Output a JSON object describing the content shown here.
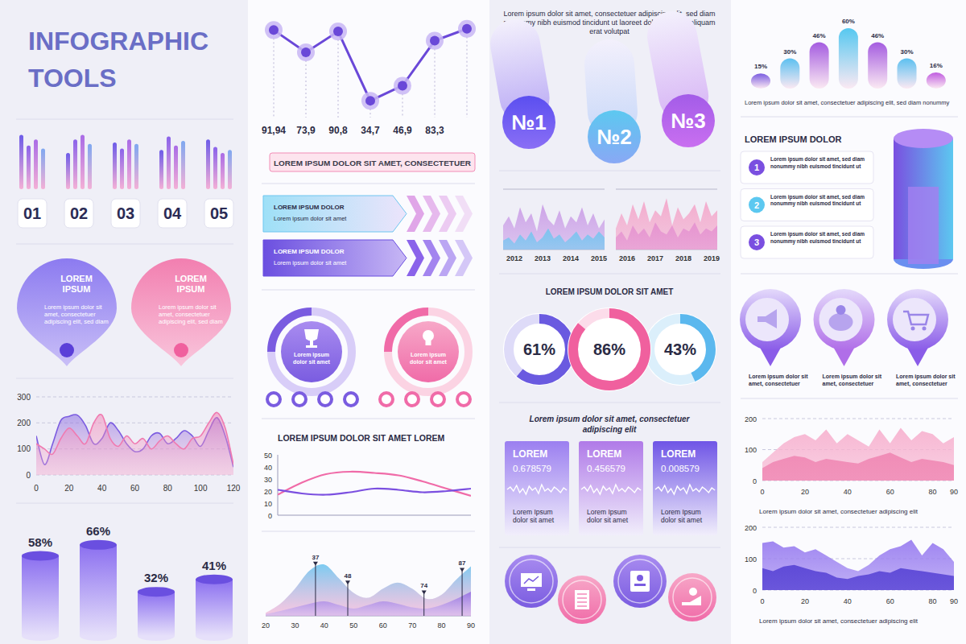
{
  "header": {
    "title": "INFOGRAPHIC TOOLS"
  },
  "chart_data": [
    {
      "type": "bar",
      "categories": [
        "01",
        "02",
        "03",
        "04",
        "05"
      ],
      "series": [
        {
          "color": "#6d5ce8",
          "values": [
            72,
            48,
            62,
            52,
            66
          ]
        },
        {
          "color": "#8a63ea",
          "values": [
            58,
            66,
            54,
            70,
            56
          ]
        },
        {
          "color": "#a96be6",
          "values": [
            66,
            72,
            66,
            58,
            48
          ]
        },
        {
          "color": "#7fa8f0",
          "values": [
            54,
            60,
            60,
            64,
            52
          ]
        }
      ],
      "ylim": [
        0,
        80
      ],
      "tick_labels": "x"
    },
    {
      "type": "area",
      "x": [
        0,
        5,
        10,
        15,
        20,
        25,
        30,
        35,
        40,
        45,
        50,
        55,
        60,
        65,
        70,
        75,
        80,
        85,
        90,
        95,
        100,
        105,
        110,
        115,
        120
      ],
      "series": [
        {
          "color": "#7b5ce0",
          "values": [
            150,
            40,
            120,
            210,
            225,
            230,
            190,
            120,
            140,
            200,
            170,
            120,
            90,
            100,
            150,
            160,
            120,
            140,
            170,
            150,
            110,
            170,
            220,
            150,
            30
          ]
        },
        {
          "color": "#f07ab0",
          "values": [
            120,
            100,
            80,
            140,
            180,
            150,
            120,
            200,
            230,
            140,
            110,
            150,
            120,
            140,
            100,
            130,
            150,
            120,
            100,
            140,
            150,
            200,
            240,
            180,
            40
          ]
        }
      ],
      "xlim": [
        0,
        120
      ],
      "xticks": [
        0,
        20,
        40,
        60,
        80,
        100,
        120
      ],
      "ylim": [
        0,
        300
      ],
      "yticks": [
        0,
        100,
        200,
        300
      ],
      "grid": true
    },
    {
      "type": "bar",
      "values": [
        58,
        66,
        32,
        41
      ],
      "value_labels": [
        "58%",
        "66%",
        "32%",
        "41%"
      ],
      "data_labels": true,
      "color": "#8b6ff0",
      "ylim": [
        0,
        70
      ],
      "tick_labels": false
    },
    {
      "type": "line",
      "title": "LOREM IPSUM DOLOR SIT AMET, CONSECTETUER",
      "values": [
        91.94,
        73.9,
        90.8,
        34.7,
        46.9,
        83.3,
        93
      ],
      "value_labels": [
        "91,94",
        "73,9",
        "90,8",
        "34,7",
        "46,9",
        "83,3",
        null
      ],
      "data_labels": true,
      "color": "#6a48d8",
      "marker": "circle",
      "ylim": [
        25,
        100
      ],
      "tick_labels": false
    },
    {
      "type": "line",
      "title": "LOREM IPSUM DOLOR SIT AMET LOREM",
      "categories": [
        null,
        null,
        null,
        null,
        null,
        null,
        null,
        null,
        null
      ],
      "series": [
        {
          "color": "#f06ba8",
          "values": [
            17,
            27,
            34,
            36,
            35,
            33,
            28,
            22,
            16
          ]
        },
        {
          "color": "#7b4fe0",
          "values": [
            21,
            18,
            17,
            19,
            22,
            21,
            19,
            20,
            22
          ]
        }
      ],
      "ylim": [
        0,
        50
      ],
      "yticks": [
        0,
        10,
        20,
        30,
        40,
        50
      ],
      "tick_labels": "y"
    },
    {
      "type": "area",
      "x": [
        20,
        25,
        30,
        35,
        40,
        45,
        50,
        55,
        60,
        65,
        70,
        75,
        80,
        85,
        90
      ],
      "series": [
        {
          "color": "#6ec6f0",
          "values": [
            5,
            20,
            45,
            75,
            85,
            62,
            38,
            30,
            45,
            55,
            45,
            28,
            35,
            60,
            82
          ]
        },
        {
          "color": "#8a5ce0",
          "values": [
            3,
            8,
            14,
            20,
            24,
            18,
            12,
            18,
            24,
            20,
            14,
            12,
            18,
            28,
            40
          ]
        }
      ],
      "xlim": [
        20,
        90
      ],
      "xticks": [
        20,
        30,
        40,
        50,
        60,
        70,
        80,
        90
      ],
      "ylim": [
        0,
        100
      ],
      "tick_labels": "x",
      "annotations": [
        37,
        48,
        74,
        87
      ]
    },
    {
      "type": "area",
      "categories": [
        null,
        null,
        "2012",
        null,
        null,
        null,
        null,
        "2013",
        null,
        null,
        null,
        null,
        "2014",
        null,
        null,
        null,
        null,
        "2015",
        null
      ],
      "series": [
        {
          "color": "#c99be6",
          "values": [
            40,
            55,
            35,
            70,
            45,
            60,
            30,
            75,
            50,
            40,
            65,
            35,
            55,
            45,
            70,
            40,
            60,
            35,
            50
          ]
        },
        {
          "color": "#6ec6f0",
          "values": [
            15,
            20,
            10,
            25,
            15,
            30,
            12,
            20,
            35,
            18,
            25,
            12,
            20,
            30,
            15,
            25,
            18,
            30,
            20
          ]
        }
      ],
      "ylim": [
        0,
        100
      ],
      "yticks": [
        0,
        100
      ],
      "grid": true,
      "tick_labels": "x"
    },
    {
      "type": "area",
      "categories": [
        null,
        null,
        "2016",
        null,
        null,
        null,
        null,
        "2017",
        null,
        null,
        null,
        null,
        "2018",
        null,
        null,
        null,
        null,
        "2019",
        null
      ],
      "series": [
        {
          "color": "#f4a3c8",
          "values": [
            35,
            60,
            40,
            75,
            50,
            80,
            45,
            65,
            55,
            85,
            40,
            70,
            50,
            60,
            75,
            45,
            80,
            55,
            65
          ]
        },
        {
          "color": "#e48fd0",
          "values": [
            20,
            30,
            15,
            40,
            25,
            35,
            20,
            45,
            30,
            25,
            40,
            20,
            35,
            30,
            45,
            25,
            35,
            30,
            40
          ]
        }
      ],
      "ylim": [
        0,
        100
      ],
      "yticks": [
        0,
        100
      ],
      "grid": true,
      "tick_labels": "x"
    },
    {
      "type": "donut",
      "title": "LOREM IPSUM DOLOR SIT AMET",
      "values": [
        61,
        86,
        43
      ],
      "value_labels": [
        "61%",
        "86%",
        "43%"
      ],
      "data_labels": true,
      "colors": [
        "#6a5ae0",
        "#f0609e",
        "#5bb8ee"
      ],
      "ylim": [
        0,
        100
      ]
    },
    {
      "type": "bar",
      "subtitle": "Lorem ipsum dolor sit amet, consectetuer adipiscing elit, sed diam nonummy",
      "values": [
        15,
        30,
        46,
        60,
        46,
        30,
        16
      ],
      "value_labels": [
        "15%",
        "30%",
        "46%",
        "60%",
        "46%",
        "30%",
        "16%"
      ],
      "data_labels": true,
      "colors": [
        "#7a5ce0",
        "#5cc0f0",
        "#a45ce0",
        "#56c8f0",
        "#a45ce0",
        "#5cc0f0",
        "#c05ce0"
      ],
      "ylim": [
        0,
        60
      ],
      "tick_labels": false
    },
    {
      "type": "area",
      "subtitle": "Lorem ipsum dolor sit amet, consectetuer adipiscing elit",
      "x": [
        0,
        5,
        10,
        15,
        20,
        25,
        30,
        35,
        40,
        45,
        50,
        55,
        60,
        65,
        70,
        75,
        80,
        85,
        90
      ],
      "series": [
        {
          "color": "#f7b3d0",
          "values": [
            60,
            90,
            120,
            140,
            150,
            130,
            165,
            120,
            150,
            130,
            110,
            165,
            120,
            170,
            130,
            160,
            150,
            120,
            140
          ]
        },
        {
          "color": "#f08ab5",
          "values": [
            40,
            60,
            70,
            80,
            75,
            60,
            70,
            65,
            60,
            55,
            70,
            80,
            90,
            75,
            60,
            70,
            65,
            60,
            50
          ]
        }
      ],
      "xlim": [
        0,
        90
      ],
      "xticks": [
        0,
        20,
        40,
        60,
        80,
        90
      ],
      "ylim": [
        0,
        200
      ],
      "yticks": [
        0,
        100,
        200
      ],
      "grid": true
    },
    {
      "type": "area",
      "subtitle": "Lorem ipsum dolor sit amet, consectetuer adipiscing elit",
      "x": [
        0,
        5,
        10,
        15,
        20,
        25,
        30,
        35,
        40,
        45,
        50,
        55,
        60,
        65,
        70,
        75,
        80,
        85,
        90
      ],
      "series": [
        {
          "color": "#9a7ff0",
          "values": [
            150,
            155,
            135,
            140,
            120,
            130,
            110,
            90,
            70,
            60,
            80,
            110,
            130,
            140,
            160,
            110,
            150,
            130,
            90
          ]
        },
        {
          "color": "#5b47d6",
          "values": [
            70,
            60,
            75,
            80,
            70,
            60,
            55,
            40,
            35,
            45,
            50,
            60,
            55,
            70,
            65,
            60,
            55,
            50,
            45
          ]
        }
      ],
      "xlim": [
        0,
        90
      ],
      "xticks": [
        0,
        20,
        40,
        60,
        80,
        90
      ],
      "ylim": [
        0,
        200
      ],
      "yticks": [
        0,
        100,
        200
      ],
      "grid": true
    }
  ],
  "panels": {
    "pins": [
      {
        "title": "LOREM IPSUM",
        "text": "Lorem ipsum dolor sit amet, consectetuer adipiscing elit, sed diam"
      },
      {
        "title": "LOREM IPSUM",
        "text": "Lorem ipsum dolor sit amet, consectetuer adipiscing elit, sed diam"
      }
    ],
    "arrows": [
      {
        "title": "LOREM IPSUM DOLOR",
        "text": "Lorem ipsum dolor sit amet"
      },
      {
        "title": "LOREM IPSUM DOLOR",
        "text": "Lorem ipsum dolor sit amet"
      }
    ],
    "badges": [
      "Lorem ipsum dolor sit amet",
      "Lorem ipsum dolor sit amet"
    ],
    "intro": "Lorem ipsum dolor sit amet, consectetuer adipiscing elit, sed diam nonummy nibh euismod tincidunt ut laoreet dolore magna aliquam erat volutpat",
    "ranks": [
      "№1",
      "№2",
      "№3"
    ],
    "cards": {
      "heading": "Lorem ipsum dolor sit amet, consectetuer adipiscing elit",
      "items": [
        {
          "title": "LOREM",
          "value": "0.678579",
          "text": "Lorem Ipsum dolor sit amet"
        },
        {
          "title": "LOREM",
          "value": "0.456579",
          "text": "Lorem Ipsum dolor sit amet"
        },
        {
          "title": "LOREM",
          "value": "0.008579",
          "text": "Lorem Ipsum dolor sit amet"
        }
      ]
    },
    "list": {
      "title": "LOREM IPSUM DOLOR",
      "items": [
        {
          "number": 1,
          "text": "Lorem ipsum dolor sit amet, sed diam nonummy nibh euismod tincidunt ut"
        },
        {
          "number": 2,
          "text": "Lorem ipsum dolor sit amet, sed diam nonummy nibh euismod tincidunt ut"
        },
        {
          "number": 3,
          "text": "Lorem ipsum dolor sit amet, sed diam nonummy nibh euismod tincidunt ut"
        }
      ]
    },
    "markers": [
      "Lorem ipsum dolor sit amet, consectetuer",
      "Lorem ipsum dolor sit amet, consectetuer",
      "Lorem ipsum dolor sit amet, consectetuer"
    ]
  }
}
